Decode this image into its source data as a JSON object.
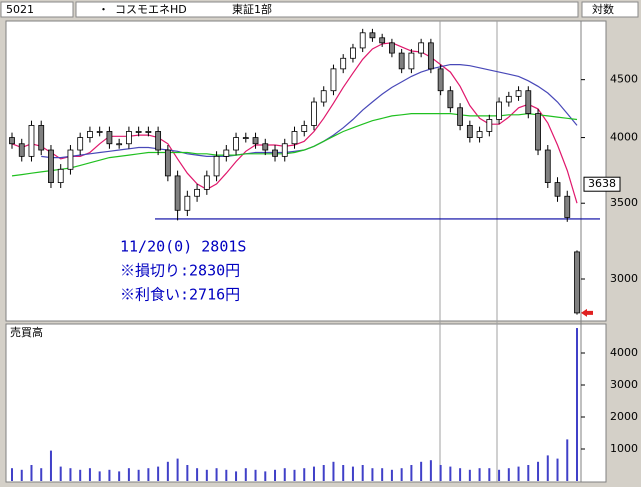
{
  "header": {
    "code": "5021",
    "dot": "・",
    "name": "コスモエネHD",
    "market": "東証1部",
    "scale_mode": "対数"
  },
  "chart_data": [
    {
      "type": "candlestick",
      "log_scale": true,
      "ylim": [
        2760,
        5060
      ],
      "yticks": [
        3000,
        3500,
        4000,
        4500
      ],
      "open": [
        4000,
        3950,
        3850,
        4100,
        3900,
        3650,
        3750,
        3900,
        4000,
        4050,
        4050,
        3950,
        3950,
        4050,
        4050,
        4050,
        3900,
        3700,
        3450,
        3550,
        3600,
        3700,
        3850,
        3900,
        4000,
        4000,
        3950,
        3900,
        3850,
        3950,
        4050,
        4100,
        4300,
        4400,
        4600,
        4700,
        4800,
        4950,
        4900,
        4850,
        4750,
        4600,
        4750,
        4850,
        4600,
        4400,
        4250,
        4100,
        4000,
        4050,
        4150,
        4300,
        4350,
        4400,
        4200,
        3900,
        3650,
        3550,
        3170
      ],
      "high": [
        4040,
        3990,
        4140,
        4140,
        3940,
        3790,
        3940,
        4040,
        4090,
        4090,
        4090,
        3990,
        4090,
        4090,
        4090,
        4090,
        3940,
        3740,
        3590,
        3640,
        3740,
        3890,
        3940,
        4040,
        4040,
        4040,
        3990,
        3940,
        3990,
        4090,
        4140,
        4340,
        4440,
        4640,
        4740,
        4840,
        4990,
        4990,
        4940,
        4890,
        4790,
        4790,
        4890,
        4890,
        4640,
        4440,
        4290,
        4140,
        4090,
        4190,
        4340,
        4390,
        4440,
        4440,
        4240,
        3940,
        3690,
        3590,
        3180
      ],
      "low": [
        3910,
        3810,
        3810,
        3860,
        3610,
        3610,
        3710,
        3860,
        3960,
        4010,
        3910,
        3910,
        3910,
        4010,
        4010,
        3860,
        3660,
        3380,
        3410,
        3510,
        3560,
        3660,
        3810,
        3860,
        3960,
        3910,
        3860,
        3810,
        3810,
        3910,
        4010,
        4060,
        4260,
        4360,
        4560,
        4660,
        4760,
        4860,
        4810,
        4710,
        4560,
        4560,
        4710,
        4560,
        4360,
        4210,
        4060,
        3960,
        3960,
        4010,
        4110,
        4260,
        4310,
        4160,
        3860,
        3610,
        3510,
        3370,
        2790
      ],
      "close": [
        3950,
        3850,
        4100,
        3900,
        3650,
        3750,
        3900,
        4000,
        4050,
        4050,
        3950,
        3950,
        4050,
        4050,
        4050,
        3900,
        3700,
        3450,
        3550,
        3600,
        3700,
        3850,
        3900,
        4000,
        4000,
        3950,
        3900,
        3850,
        3950,
        4050,
        4100,
        4300,
        4400,
        4600,
        4700,
        4800,
        4950,
        4900,
        4850,
        4750,
        4600,
        4750,
        4850,
        4600,
        4400,
        4250,
        4100,
        4000,
        4050,
        4150,
        4300,
        4350,
        4400,
        4200,
        3900,
        3650,
        3550,
        3400,
        2800
      ],
      "up_color": "#ffffff",
      "down_color": "#808080",
      "moving_averages": [
        {
          "color": "#e0186c",
          "values": [
            3950,
            3920,
            3950,
            3930,
            3880,
            3830,
            3850,
            3850,
            3880,
            3950,
            4010,
            4010,
            4010,
            4020,
            4020,
            4000,
            3950,
            3830,
            3720,
            3640,
            3600,
            3640,
            3720,
            3810,
            3890,
            3940,
            3940,
            3940,
            3930,
            3940,
            3970,
            4050,
            4160,
            4290,
            4430,
            4560,
            4690,
            4790,
            4840,
            4850,
            4810,
            4770,
            4760,
            4710,
            4640,
            4570,
            4440,
            4270,
            4160,
            4110,
            4110,
            4170,
            4250,
            4280,
            4240,
            4120,
            3940,
            3740,
            3500
          ]
        },
        {
          "color": "#4848b8",
          "values": [
            null,
            null,
            null,
            3850,
            3840,
            3840,
            3850,
            3860,
            3870,
            3880,
            3890,
            3900,
            3910,
            3920,
            3920,
            3910,
            3900,
            3890,
            3870,
            3860,
            3850,
            3850,
            3850,
            3860,
            3870,
            3880,
            3880,
            3880,
            3880,
            3890,
            3900,
            3930,
            3970,
            4020,
            4080,
            4150,
            4230,
            4300,
            4370,
            4430,
            4480,
            4530,
            4570,
            4600,
            4620,
            4640,
            4640,
            4630,
            4610,
            4590,
            4570,
            4550,
            4530,
            4490,
            4440,
            4380,
            4300,
            4200,
            4100
          ]
        },
        {
          "color": "#20c020",
          "values": [
            3700,
            3710,
            3720,
            3730,
            3740,
            3750,
            3760,
            3780,
            3800,
            3820,
            3840,
            3850,
            3860,
            3870,
            3880,
            3880,
            3880,
            3880,
            3880,
            3870,
            3870,
            3860,
            3860,
            3860,
            3870,
            3870,
            3870,
            3870,
            3870,
            3880,
            3900,
            3930,
            3970,
            4010,
            4050,
            4080,
            4110,
            4140,
            4160,
            4180,
            4190,
            4200,
            4200,
            4200,
            4200,
            4200,
            4190,
            4180,
            4180,
            4180,
            4180,
            4190,
            4190,
            4200,
            4190,
            4180,
            4170,
            4160,
            4150
          ]
        }
      ],
      "support_line": 3390,
      "last_price": 3638,
      "annotations": [
        "11/20(0) 2801S",
        "※損切り:2830円",
        "※利食い:2716円"
      ]
    },
    {
      "type": "bar",
      "title": "売買高",
      "ylim": [
        0,
        4875
      ],
      "yticks": [
        1000,
        2000,
        3000,
        4000
      ],
      "color": "#4040c8",
      "values": [
        400,
        350,
        500,
        400,
        950,
        450,
        400,
        350,
        400,
        300,
        350,
        300,
        400,
        350,
        400,
        450,
        600,
        700,
        500,
        400,
        350,
        400,
        350,
        300,
        400,
        350,
        300,
        350,
        400,
        350,
        400,
        450,
        500,
        600,
        500,
        450,
        500,
        400,
        400,
        350,
        400,
        500,
        600,
        650,
        500,
        450,
        400,
        350,
        400,
        400,
        350,
        400,
        450,
        500,
        600,
        800,
        700,
        1300,
        4780
      ]
    }
  ]
}
